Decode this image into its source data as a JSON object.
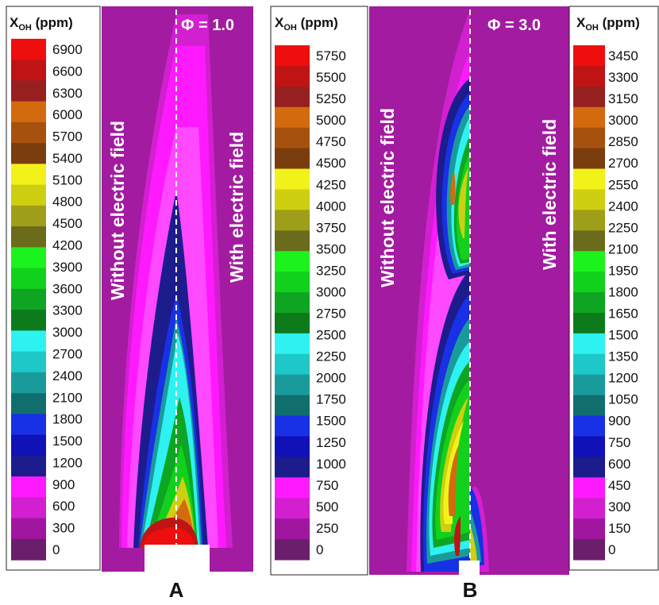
{
  "palette": [
    "#6b1e6b",
    "#a0169f",
    "#d21fd0",
    "#ff19ff",
    "#1c1c8c",
    "#1111b8",
    "#1830e6",
    "#116e6e",
    "#1a9b9b",
    "#1fc8c8",
    "#2ef2f2",
    "#0d7a1c",
    "#0ea522",
    "#12d11c",
    "#1cf21c",
    "#6b6b1c",
    "#9e9e1a",
    "#cfcf12",
    "#f2f21a",
    "#7a3d0e",
    "#a6520e",
    "#d46a0e",
    "#962020",
    "#c01414",
    "#ee0e0e"
  ],
  "background_color": "#a21ba0",
  "legend_A": {
    "title_main": "X",
    "title_sub": "OH",
    "title_unit": " (ppm)",
    "ticks": [
      "6900",
      "6600",
      "6300",
      "6000",
      "5700",
      "5400",
      "5100",
      "4800",
      "4500",
      "4200",
      "3900",
      "3600",
      "3300",
      "3000",
      "2700",
      "2400",
      "2100",
      "1800",
      "1500",
      "1200",
      "900",
      "600",
      "300",
      "0"
    ]
  },
  "legend_B": {
    "title_main": "X",
    "title_sub": "OH",
    "title_unit": " (ppm)",
    "ticks": [
      "5750",
      "5500",
      "5250",
      "5000",
      "4750",
      "4500",
      "4250",
      "4000",
      "3750",
      "3500",
      "3250",
      "3000",
      "2750",
      "2500",
      "2250",
      "2000",
      "1750",
      "1500",
      "1250",
      "1000",
      "750",
      "500",
      "250",
      "0"
    ]
  },
  "legend_C": {
    "title_main": "X",
    "title_sub": "OH",
    "title_unit": " (ppm)",
    "ticks": [
      "3450",
      "3300",
      "3150",
      "3000",
      "2850",
      "2700",
      "2550",
      "2400",
      "2250",
      "2100",
      "1950",
      "1800",
      "1650",
      "1500",
      "1350",
      "1200",
      "1050",
      "900",
      "750",
      "600",
      "450",
      "300",
      "150",
      "0"
    ]
  },
  "panel_A": {
    "label": "A",
    "phi": "Φ = 1.0",
    "left_text": "Without electric field",
    "right_text": "With electric field"
  },
  "panel_B": {
    "label": "B",
    "phi": "Φ = 3.0",
    "left_text": "Without electric field",
    "right_text": "With electric field"
  }
}
